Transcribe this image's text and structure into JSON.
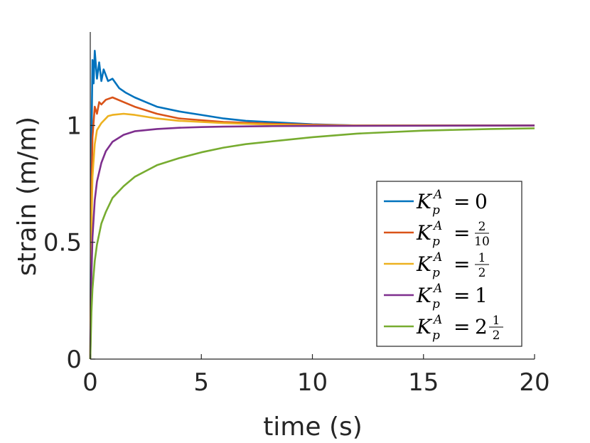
{
  "chart_data": {
    "type": "line",
    "xlabel": "time (s)",
    "ylabel": "strain (m/m)",
    "xlim": [
      0,
      20
    ],
    "ylim": [
      0,
      1.4
    ],
    "xticks": [
      "0",
      "5",
      "10",
      "15",
      "20"
    ],
    "yticks": [
      "0",
      "0.5",
      "1"
    ],
    "grid": false,
    "legend_position": "lower-right",
    "series": [
      {
        "name": "K_p^A = 0",
        "legend_value": "0",
        "color": "#0072BD",
        "x": [
          0,
          0.05,
          0.1,
          0.15,
          0.2,
          0.3,
          0.4,
          0.5,
          0.6,
          0.8,
          1.0,
          1.3,
          1.6,
          2.0,
          2.5,
          3,
          4,
          5,
          6,
          7,
          8,
          10,
          12,
          15,
          20
        ],
        "y": [
          0,
          0.9,
          1.28,
          1.18,
          1.32,
          1.2,
          1.27,
          1.19,
          1.24,
          1.19,
          1.2,
          1.16,
          1.14,
          1.12,
          1.1,
          1.08,
          1.06,
          1.045,
          1.03,
          1.02,
          1.015,
          1.005,
          1.0,
          1.0,
          1.0
        ]
      },
      {
        "name": "K_p^A = 2/10",
        "legend_value": "2/10",
        "color": "#D95319",
        "x": [
          0,
          0.05,
          0.1,
          0.2,
          0.3,
          0.4,
          0.5,
          0.7,
          1.0,
          1.5,
          2,
          3,
          4,
          6,
          8,
          10,
          12,
          15,
          20
        ],
        "y": [
          0,
          0.7,
          0.95,
          1.08,
          1.05,
          1.1,
          1.09,
          1.11,
          1.12,
          1.1,
          1.08,
          1.05,
          1.03,
          1.015,
          1.008,
          1.003,
          1.0,
          1.0,
          1.0
        ]
      },
      {
        "name": "K_p^A = 1/2",
        "legend_value": "1/2",
        "color": "#EDB120",
        "x": [
          0,
          0.05,
          0.1,
          0.2,
          0.3,
          0.5,
          0.8,
          1.0,
          1.5,
          2,
          3,
          4,
          6,
          8,
          10,
          15,
          20
        ],
        "y": [
          0,
          0.55,
          0.78,
          0.92,
          0.98,
          1.01,
          1.04,
          1.045,
          1.05,
          1.045,
          1.03,
          1.02,
          1.01,
          1.004,
          1.0,
          1.0,
          1.0
        ]
      },
      {
        "name": "K_p^A = 1",
        "legend_value": "1",
        "color": "#7E2F8E",
        "x": [
          0,
          0.05,
          0.1,
          0.2,
          0.3,
          0.5,
          0.7,
          1.0,
          1.5,
          2,
          3,
          4,
          5,
          6,
          8,
          10,
          15,
          20
        ],
        "y": [
          0,
          0.35,
          0.52,
          0.68,
          0.76,
          0.84,
          0.89,
          0.93,
          0.96,
          0.975,
          0.985,
          0.99,
          0.993,
          0.995,
          0.997,
          0.998,
          0.999,
          1.0
        ]
      },
      {
        "name": "K_p^A = 2 1/2",
        "legend_value": "2 1/2",
        "color": "#77AC30",
        "x": [
          0,
          0.05,
          0.1,
          0.2,
          0.3,
          0.5,
          0.7,
          1.0,
          1.5,
          2,
          2.5,
          3,
          4,
          5,
          6,
          7,
          8,
          10,
          12,
          15,
          18,
          20
        ],
        "y": [
          0,
          0.2,
          0.3,
          0.42,
          0.49,
          0.58,
          0.63,
          0.69,
          0.74,
          0.78,
          0.805,
          0.83,
          0.86,
          0.885,
          0.905,
          0.92,
          0.93,
          0.95,
          0.965,
          0.978,
          0.985,
          0.988
        ]
      }
    ]
  }
}
